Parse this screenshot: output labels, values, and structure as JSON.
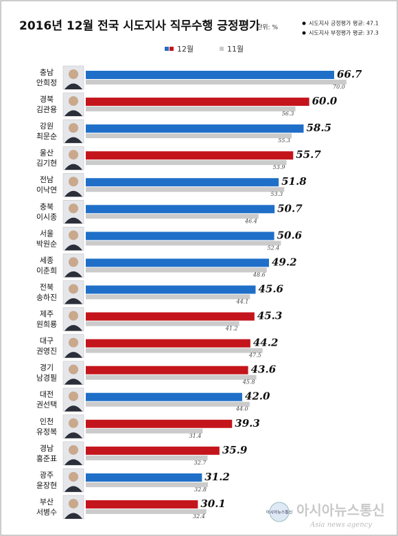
{
  "chart_data": {
    "type": "bar",
    "orientation": "horizontal",
    "title": "2016년 12월 전국 시도지사 직무수행 긍정평가",
    "unit": "단위: %",
    "notes": [
      "시도지사 긍정평가 평균: 47.1",
      "시도지사 부정평가 평균: 37.3"
    ],
    "categories": [
      "충남",
      "경북",
      "강원",
      "울산",
      "전남",
      "충북",
      "서울",
      "세종",
      "전북",
      "제주",
      "대구",
      "경기",
      "대전",
      "인천",
      "경남",
      "광주",
      "부산"
    ],
    "governors": [
      "안희정",
      "김관용",
      "최문순",
      "김기현",
      "이낙연",
      "이시종",
      "박원순",
      "이춘희",
      "송하진",
      "원희룡",
      "권영진",
      "남경필",
      "권선택",
      "유정복",
      "홍준표",
      "윤장현",
      "서병수"
    ],
    "series": [
      {
        "name": "12월",
        "values": [
          66.7,
          60.0,
          58.5,
          55.7,
          51.8,
          50.7,
          50.6,
          49.2,
          45.6,
          45.3,
          44.2,
          43.6,
          42.0,
          39.3,
          35.9,
          31.2,
          30.1
        ],
        "value_labels": [
          "66.7",
          "60.0",
          "58.5",
          "55.7",
          "51.8",
          "50.7",
          "50.6",
          "49.2",
          "45.6",
          "45.3",
          "44.2",
          "43.6",
          "42.0",
          "39.3",
          "35.9",
          "31.2",
          "30.1"
        ],
        "colors": [
          "#1f6fc8",
          "#c4151c",
          "#1f6fc8",
          "#c4151c",
          "#1f6fc8",
          "#1f6fc8",
          "#1f6fc8",
          "#1f6fc8",
          "#1f6fc8",
          "#c4151c",
          "#c4151c",
          "#c4151c",
          "#1f6fc8",
          "#c4151c",
          "#c4151c",
          "#1f6fc8",
          "#c4151c"
        ]
      },
      {
        "name": "11월",
        "values": [
          70.0,
          56.3,
          55.3,
          53.9,
          53.3,
          46.4,
          52.4,
          48.6,
          44.1,
          41.2,
          47.5,
          45.8,
          44.0,
          31.4,
          32.7,
          32.8,
          32.4
        ],
        "value_labels": [
          "70.0",
          "56.3",
          "55.3",
          "53.9",
          "53.3",
          "46.4",
          "52.4",
          "48.6",
          "44.1",
          "41.2",
          "47.5",
          "45.8",
          "44.0",
          "31.4",
          "32.7",
          "32.8",
          "32.4"
        ],
        "color": "#cbcbcb"
      }
    ],
    "xlim": [
      0,
      75
    ],
    "watermark": {
      "title": "아시아뉴스통신",
      "subtitle": "Asia news agency",
      "logo": "아시아뉴스통신"
    }
  }
}
